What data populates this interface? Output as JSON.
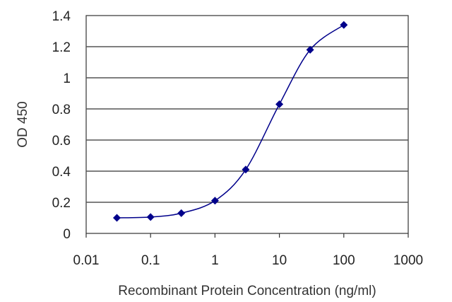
{
  "chart_data": {
    "type": "line",
    "x_scale": "log",
    "xlabel": "Recombinant Protein Concentration (ng/ml)",
    "ylabel": "OD 450",
    "xlim": [
      0.01,
      1000
    ],
    "ylim": [
      0,
      1.4
    ],
    "x_ticks": [
      "0.01",
      "0.1",
      "1",
      "10",
      "100",
      "1000"
    ],
    "y_ticks": [
      "0",
      "0.2",
      "0.4",
      "0.6",
      "0.8",
      "1",
      "1.2",
      "1.4"
    ],
    "grid": "horizontal",
    "legend": "none",
    "series": [
      {
        "x": [
          0.03,
          0.1,
          0.3,
          1,
          3,
          10,
          30,
          100
        ],
        "y": [
          0.1,
          0.105,
          0.13,
          0.21,
          0.41,
          0.83,
          1.18,
          1.34
        ],
        "color": "#00008b",
        "marker": "diamond"
      }
    ]
  }
}
